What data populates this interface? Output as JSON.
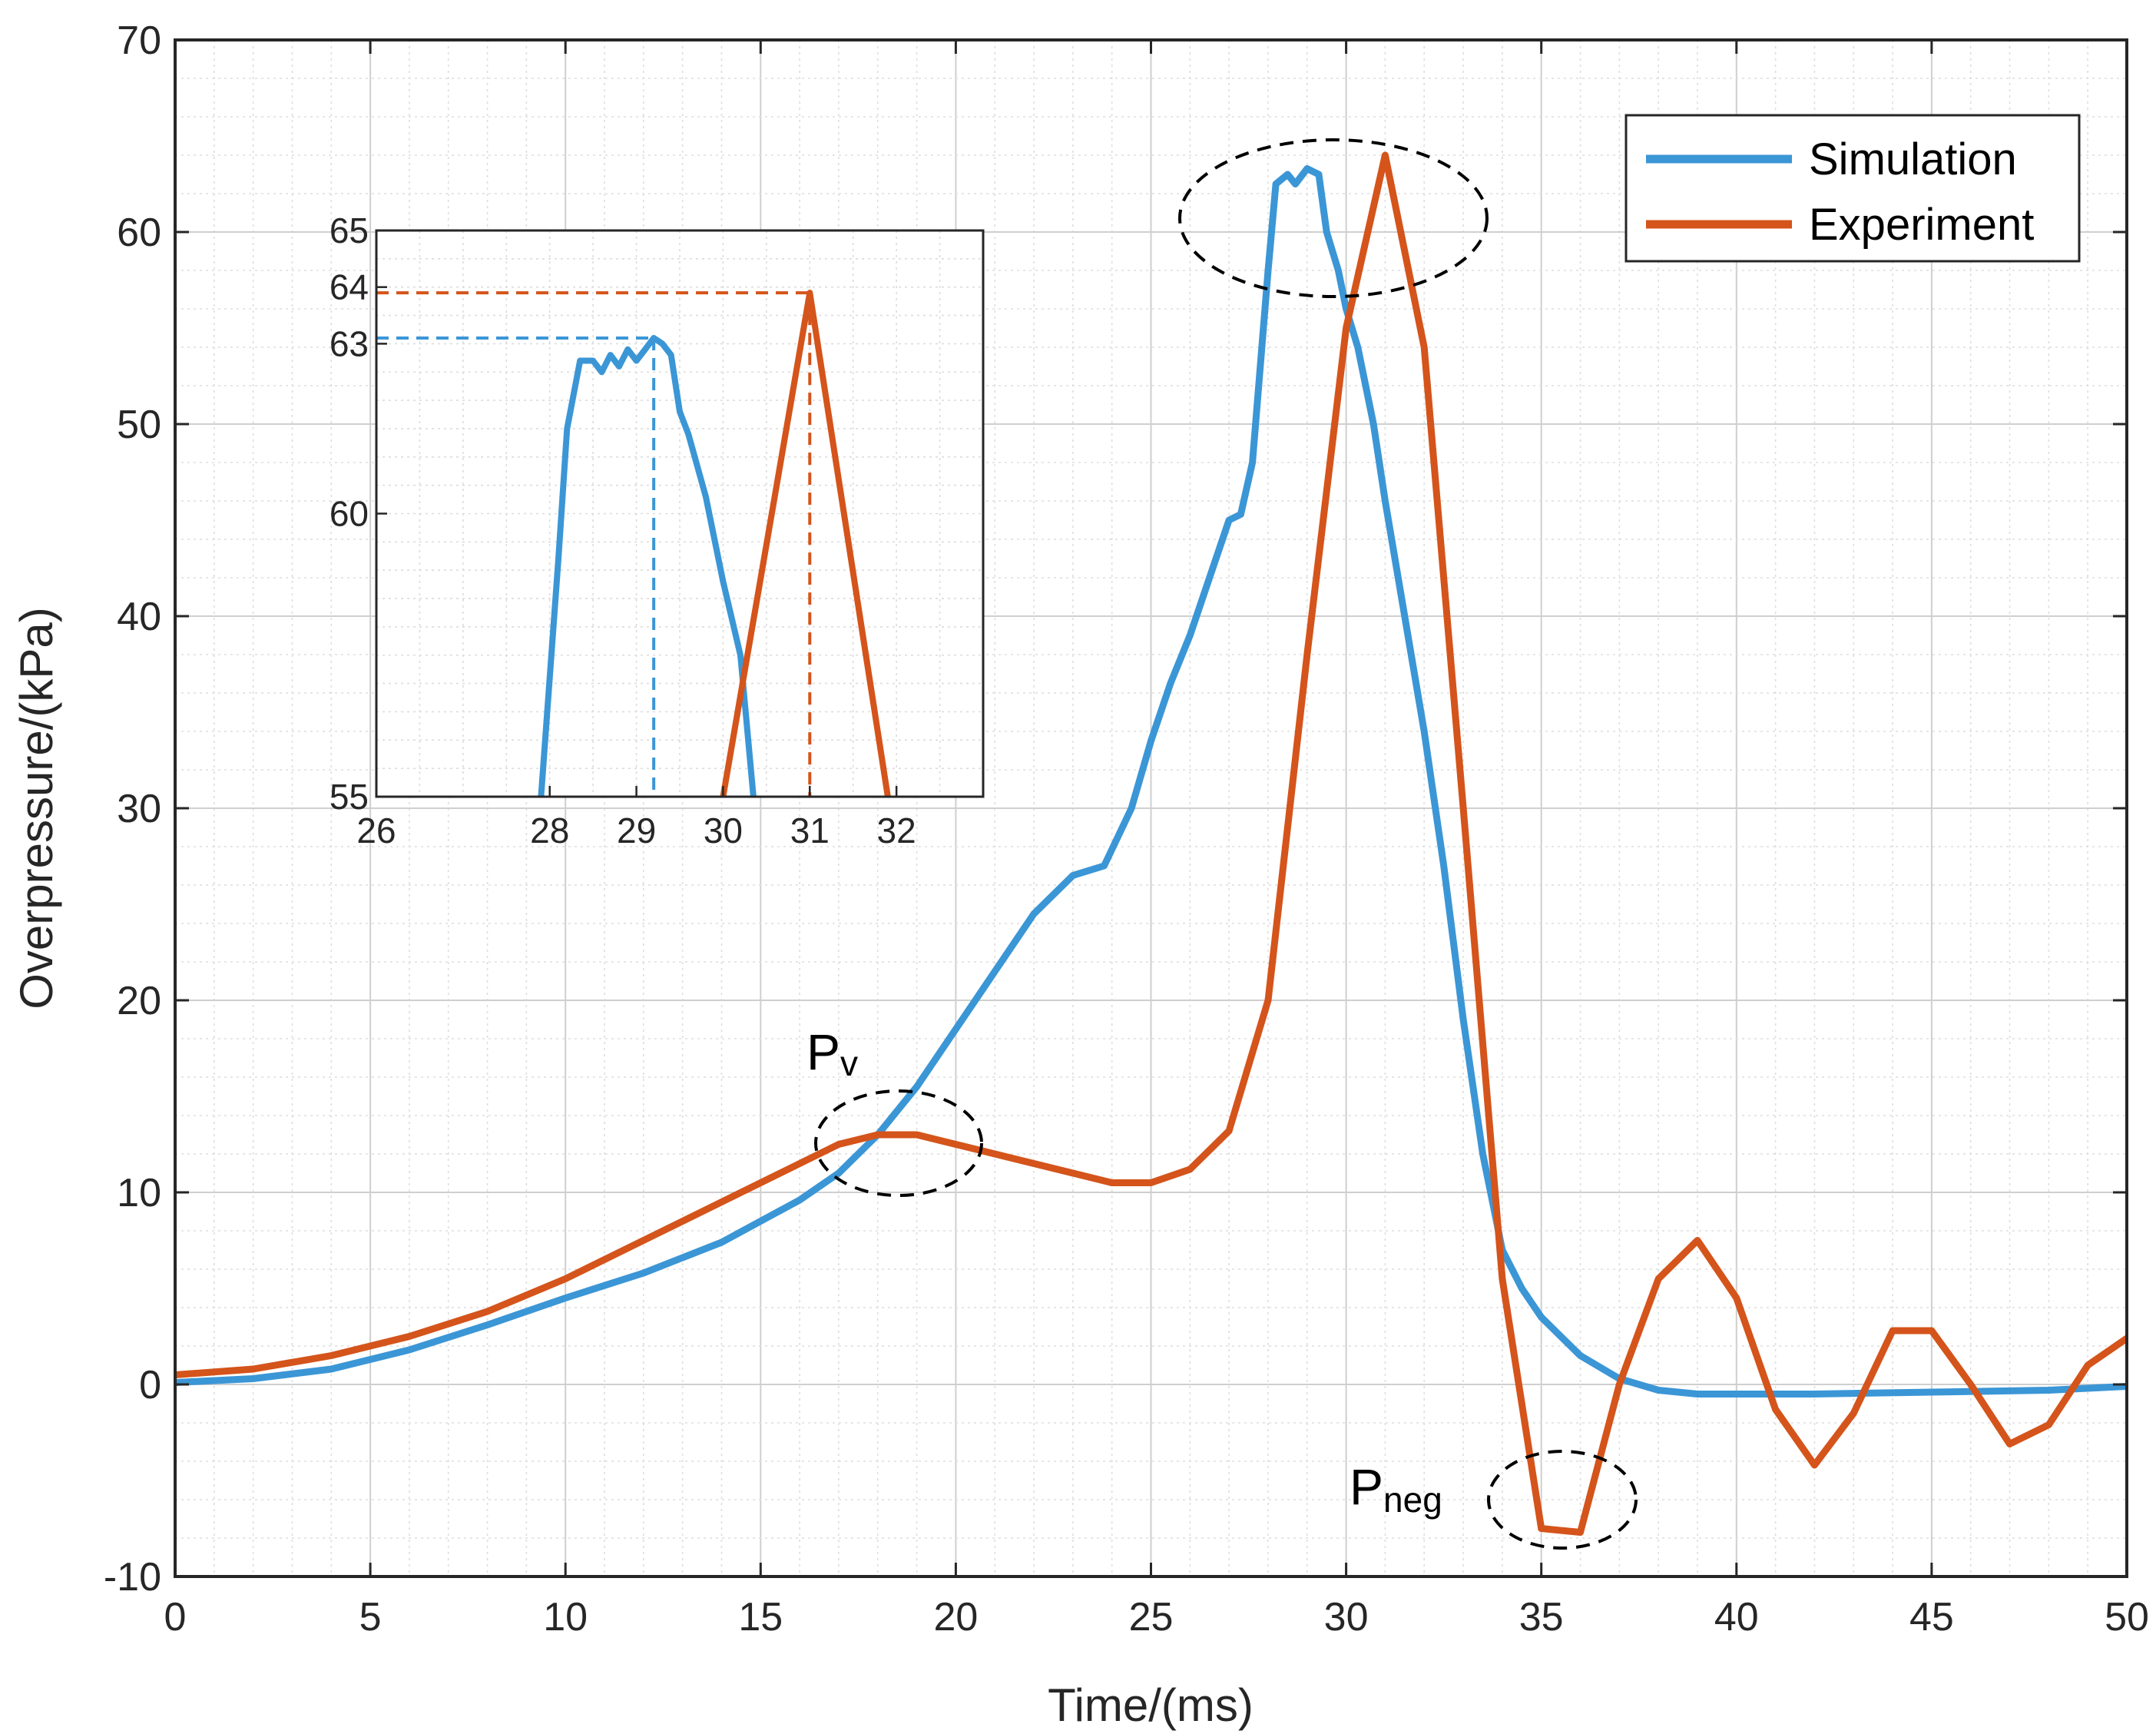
{
  "chart_data": {
    "type": "line",
    "title": "",
    "xlabel": "Time/(ms)",
    "ylabel": "Overpressure/(kPa)",
    "xlim": [
      0,
      50
    ],
    "ylim": [
      -10,
      70
    ],
    "xticks": [
      0,
      5,
      10,
      15,
      20,
      25,
      30,
      35,
      40,
      45,
      50
    ],
    "yticks": [
      -10,
      0,
      10,
      20,
      30,
      40,
      50,
      60,
      70
    ],
    "x_tick_labels": [
      "0",
      "5",
      "10",
      "15",
      "20",
      "25",
      "30",
      "35",
      "40",
      "45",
      "50"
    ],
    "y_tick_labels": [
      "-10",
      "0",
      "10",
      "20",
      "30",
      "40",
      "50",
      "60",
      "70"
    ],
    "grid": true,
    "legend_position": "top-right",
    "colors": {
      "Simulation": "#3b96d6",
      "Experiment": "#d4541b"
    },
    "series": [
      {
        "name": "Simulation",
        "x": [
          0,
          2,
          4,
          6,
          8,
          10,
          12,
          14,
          16,
          17,
          18,
          19,
          20,
          21,
          22,
          23,
          23.8,
          24.5,
          25,
          25.5,
          26,
          26.5,
          27,
          27.3,
          27.6,
          27.8,
          28,
          28.2,
          28.5,
          28.7,
          29,
          29.3,
          29.5,
          29.8,
          30,
          30.3,
          30.7,
          31,
          31.5,
          32,
          32.5,
          33,
          33.5,
          34,
          34.5,
          35,
          36,
          37,
          38,
          39,
          40,
          42,
          45,
          48,
          50
        ],
        "values": [
          0.1,
          0.3,
          0.8,
          1.8,
          3.1,
          4.5,
          5.8,
          7.4,
          9.6,
          11,
          13,
          15.5,
          18.5,
          21.5,
          24.5,
          26.5,
          27,
          30,
          33.5,
          36.5,
          39,
          42,
          45,
          45.3,
          48,
          53,
          58,
          62.5,
          63,
          62.5,
          63.3,
          63,
          60,
          58,
          56,
          54,
          50,
          46,
          40,
          34,
          27,
          19,
          12,
          7,
          5,
          3.5,
          1.5,
          0.3,
          -0.3,
          -0.5,
          -0.5,
          -0.5,
          -0.4,
          -0.3,
          -0.1
        ]
      },
      {
        "name": "Experiment",
        "x": [
          0,
          2,
          4,
          6,
          8,
          10,
          12,
          14,
          16,
          17,
          18,
          19,
          20,
          21,
          22,
          23,
          24,
          25,
          26,
          27,
          28,
          29,
          30,
          31,
          32,
          33,
          34,
          35,
          36,
          37,
          38,
          39,
          40,
          41,
          42,
          43,
          44,
          45,
          46,
          47,
          48,
          49,
          50
        ],
        "values": [
          0.5,
          0.8,
          1.5,
          2.5,
          3.8,
          5.5,
          7.5,
          9.5,
          11.5,
          12.5,
          13,
          13,
          12.5,
          12,
          11.5,
          11,
          10.5,
          10.5,
          11.2,
          13.2,
          20,
          38,
          55,
          64,
          54,
          30,
          5.5,
          -7.5,
          -7.7,
          0,
          5.5,
          7.5,
          4.5,
          -1.3,
          -4.2,
          -1.5,
          2.8,
          2.8,
          0,
          -3.1,
          -2.1,
          1,
          2.4
        ]
      }
    ],
    "inset": {
      "xlim": [
        26,
        33
      ],
      "ylim": [
        55,
        65
      ],
      "xticks": [
        26,
        28,
        29,
        30,
        31,
        32
      ],
      "yticks": [
        55,
        60,
        63,
        64,
        65
      ],
      "x_tick_labels": [
        "26",
        "28",
        "29",
        "30",
        "31",
        "32"
      ],
      "y_tick_labels": [
        "55",
        "60",
        "63",
        "64",
        "65"
      ],
      "series": [
        {
          "name": "Simulation",
          "x": [
            27.9,
            28.1,
            28.2,
            28.35,
            28.5,
            28.6,
            28.7,
            28.8,
            28.9,
            29.0,
            29.1,
            29.2,
            29.3,
            29.4,
            29.5,
            29.6,
            29.8,
            30.0,
            30.2,
            30.35
          ],
          "values": [
            55,
            59.2,
            61.5,
            62.7,
            62.7,
            62.5,
            62.8,
            62.6,
            62.9,
            62.7,
            62.9,
            63.1,
            63.0,
            62.8,
            61.8,
            61.4,
            60.3,
            58.8,
            57.5,
            55
          ]
        },
        {
          "name": "Experiment",
          "x": [
            30.0,
            31.0,
            31.9
          ],
          "values": [
            55,
            63.9,
            55
          ]
        }
      ],
      "reference_lines": [
        {
          "series": "Simulation",
          "x": 29.2,
          "y": 63.1
        },
        {
          "series": "Experiment",
          "x": 31.0,
          "y": 63.9
        }
      ]
    },
    "annotations": [
      {
        "base": "P",
        "sub": "v",
        "x": 18.7,
        "y": 13
      },
      {
        "base": "P",
        "sub": "neg",
        "x": 35.5,
        "y": -6
      },
      {
        "base": "",
        "sub": "",
        "x": 29.5,
        "y": 61.5
      }
    ]
  }
}
